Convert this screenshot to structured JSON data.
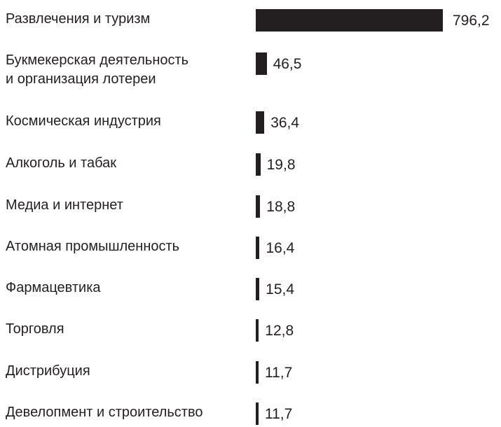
{
  "chart_data": {
    "type": "bar",
    "orientation": "horizontal",
    "title": "",
    "xlabel": "",
    "ylabel": "",
    "categories": [
      "Развлечения и туризм",
      "Букмекерская деятельность\nи организация лотереи",
      "Космическая индустрия",
      "Алкоголь и табак",
      "Медиа и интернет",
      "Атомная промышленность",
      "Фармацевтика",
      "Торговля",
      "Дистрибуция",
      "Девелопмент и строительство"
    ],
    "values": [
      796.2,
      46.5,
      36.4,
      19.8,
      18.8,
      16.4,
      15.4,
      12.8,
      11.7,
      11.7
    ],
    "value_labels": [
      "796,2",
      "46,5",
      "36,4",
      "19,8",
      "18,8",
      "16,4",
      "15,4",
      "12,8",
      "11,7",
      "11,7"
    ],
    "xlim": [
      0,
      796.2
    ],
    "grid": false,
    "bar_color": "#231f20"
  }
}
